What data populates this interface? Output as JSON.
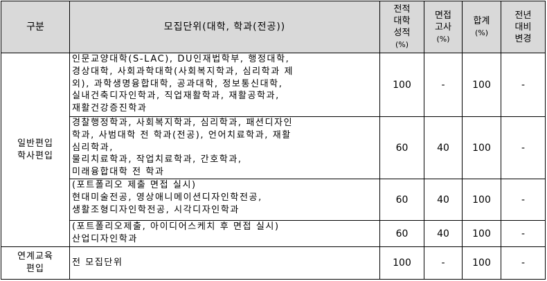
{
  "headers": {
    "category": "구분",
    "unit": "모집단위(대학, 학과(전공))",
    "transcript": [
      "전적",
      "대학",
      "성적",
      "(%)"
    ],
    "interview": [
      "면접",
      "고사",
      "(%)"
    ],
    "total": [
      "합계",
      "(%)"
    ],
    "change": [
      "전년",
      "대비",
      "변경"
    ]
  },
  "groups": [
    {
      "label": [
        "일반편입",
        "학사편입"
      ]
    },
    {
      "label": [
        "연계교육",
        "편입"
      ]
    }
  ],
  "rows": [
    {
      "lines": [
        "인문교양대학(S-LAC), DU인재법학부, 행정대학,",
        "경상대학, 사회과학대학(사회복지학과, 심리학과 제",
        "외), 과학생명융합대학, 공과대학, 정보통신대학,",
        "실내건축디자인학과, 직업재활학과, 재활공학과,",
        "재활건강증진학과"
      ],
      "transcript": "100",
      "interview": "-",
      "total": "100",
      "change": "-"
    },
    {
      "lines": [
        "경찰행정학과, 사회복지학과, 심리학과, 패션디자인",
        "학과, 사범대학 전 학과(전공), 언어치료학과, 재활",
        "심리학과,",
        "물리치료학과, 작업치료학과, 간호학과,",
        "미래융합대학 전 학과"
      ],
      "transcript": "60",
      "interview": "40",
      "total": "100",
      "change": "-"
    },
    {
      "lines": [
        "(포트폴리오 제출 면접 실시)",
        "현대미술전공, 영상애니메이션디자인학전공,",
        "생활조형디자인학전공, 시각디자인학과"
      ],
      "transcript": "60",
      "interview": "40",
      "total": "100",
      "change": "-"
    },
    {
      "lines": [
        "(포트폴리오제출, 아이디어스케치 후 면접 실시)",
        "산업디자인학과"
      ],
      "transcript": "60",
      "interview": "40",
      "total": "100",
      "change": "-"
    },
    {
      "lines": [
        "전 모집단위"
      ],
      "transcript": "100",
      "interview": "-",
      "total": "100",
      "change": "-"
    }
  ]
}
